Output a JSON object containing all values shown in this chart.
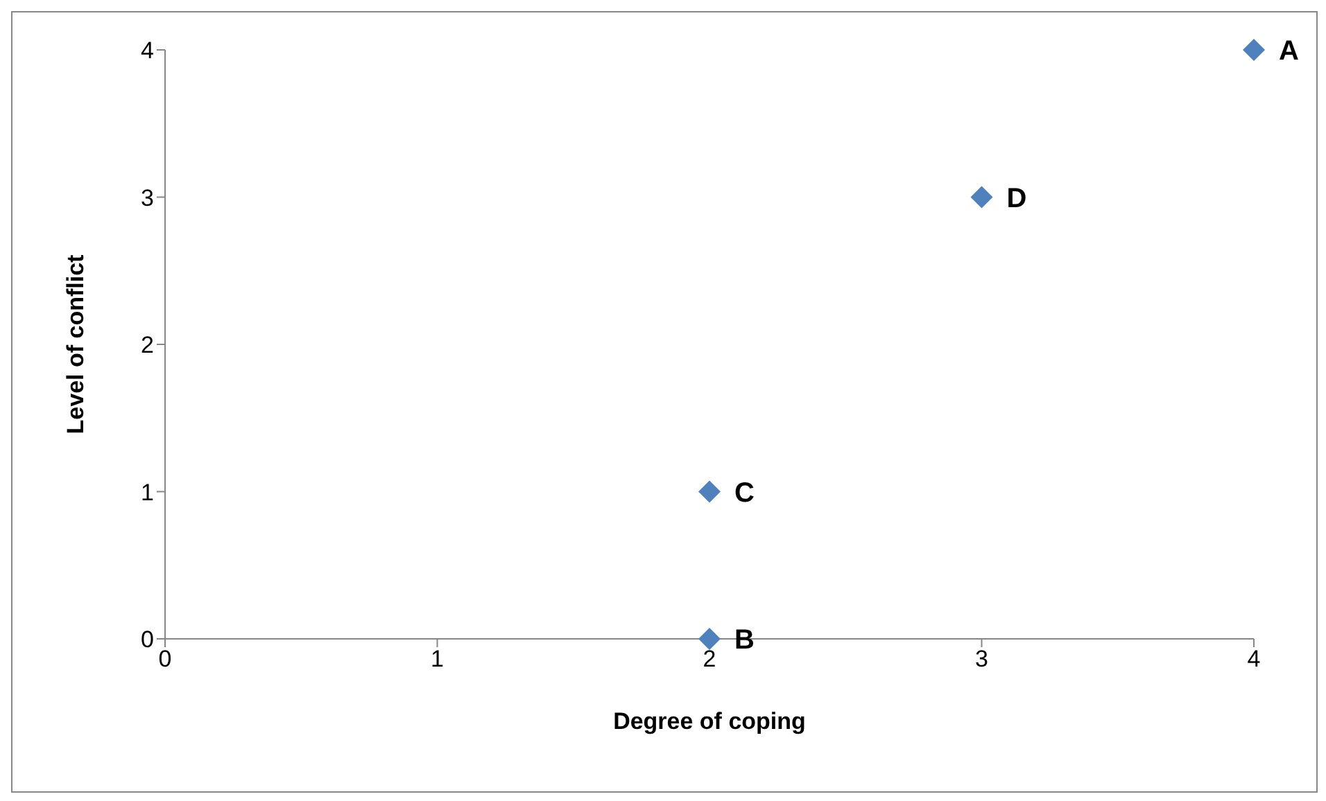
{
  "chart_data": {
    "type": "scatter",
    "xlabel": "Degree of coping",
    "ylabel": "Level of conflict",
    "x": [
      4,
      2,
      2,
      3
    ],
    "values": [
      4,
      0,
      1,
      3
    ],
    "color": "#4f81bd",
    "marker": "diamond",
    "xlim": [
      0,
      4
    ],
    "xticks": [
      0,
      1,
      2,
      3,
      4
    ],
    "ylim": [
      0,
      4
    ],
    "yticks": [
      0,
      1,
      2,
      3,
      4
    ],
    "annotations": [
      {
        "text": "A",
        "x": 4,
        "y": 4
      },
      {
        "text": "B",
        "x": 2,
        "y": 0
      },
      {
        "text": "C",
        "x": 2,
        "y": 1
      },
      {
        "text": "D",
        "x": 3,
        "y": 3
      }
    ]
  }
}
